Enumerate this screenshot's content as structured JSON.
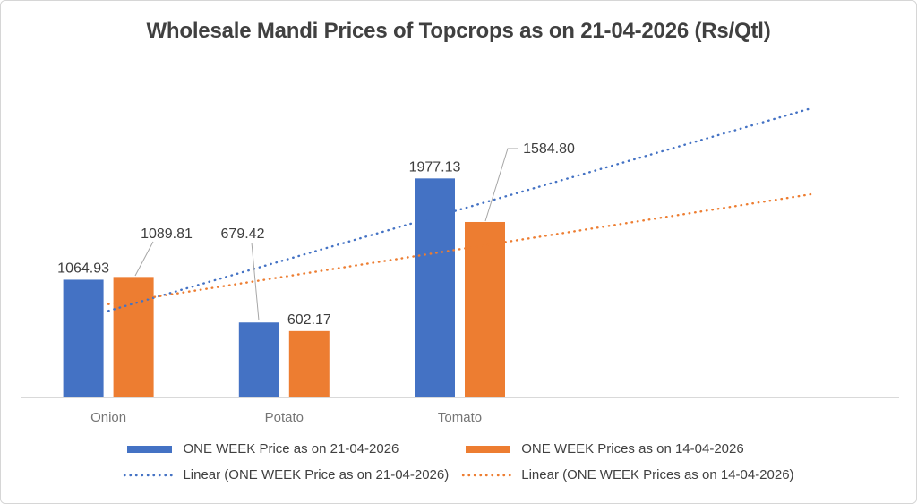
{
  "frame": {
    "title": "Wholesale Mandi Prices of Topcrops as on 21-04-2026 (Rs/Qtl)"
  },
  "colors": {
    "background": "#FFFFFF",
    "frame_border": "#D6D6D6",
    "title_text": "#404040",
    "data_label_text": "#3D3D3D",
    "category_text": "#757575",
    "axis_line": "#D9D9D9",
    "leader_line": "#A6A6A6",
    "series1": "#4472C4",
    "series2": "#ED7D31"
  },
  "chart_data": {
    "type": "bar",
    "title": "Wholesale Mandi Prices of Topcrops as on 21-04-2026 (Rs/Qtl)",
    "categories": [
      "Onion",
      "Potato",
      "Tomato"
    ],
    "series": [
      {
        "name": "ONE WEEK Price as on 21-04-2026",
        "color": "#4472C4",
        "values": [
          1064.93,
          679.42,
          1977.13
        ]
      },
      {
        "name": "ONE WEEK Prices as on 14-04-2026",
        "color": "#ED7D31",
        "values": [
          1089.81,
          602.17,
          1584.8
        ]
      }
    ],
    "data_labels": [
      "1064.93",
      "1089.81",
      "679.42",
      "602.17",
      "1977.13",
      "1584.80"
    ],
    "trendlines": [
      {
        "series": 0,
        "label": "Linear (ONE WEEK Price as on 21-04-2026)",
        "type": "linear",
        "forecast_forward_periods": 2
      },
      {
        "series": 1,
        "label": "Linear (ONE WEEK Prices as on 14-04-2026)",
        "type": "linear",
        "forecast_forward_periods": 2
      }
    ],
    "xlabel": "",
    "ylabel": "",
    "ylim": [
      0,
      3000
    ],
    "axis_slots": 5,
    "gridlines": false,
    "y_axis_labels_visible": false,
    "legend_position": "bottom"
  }
}
